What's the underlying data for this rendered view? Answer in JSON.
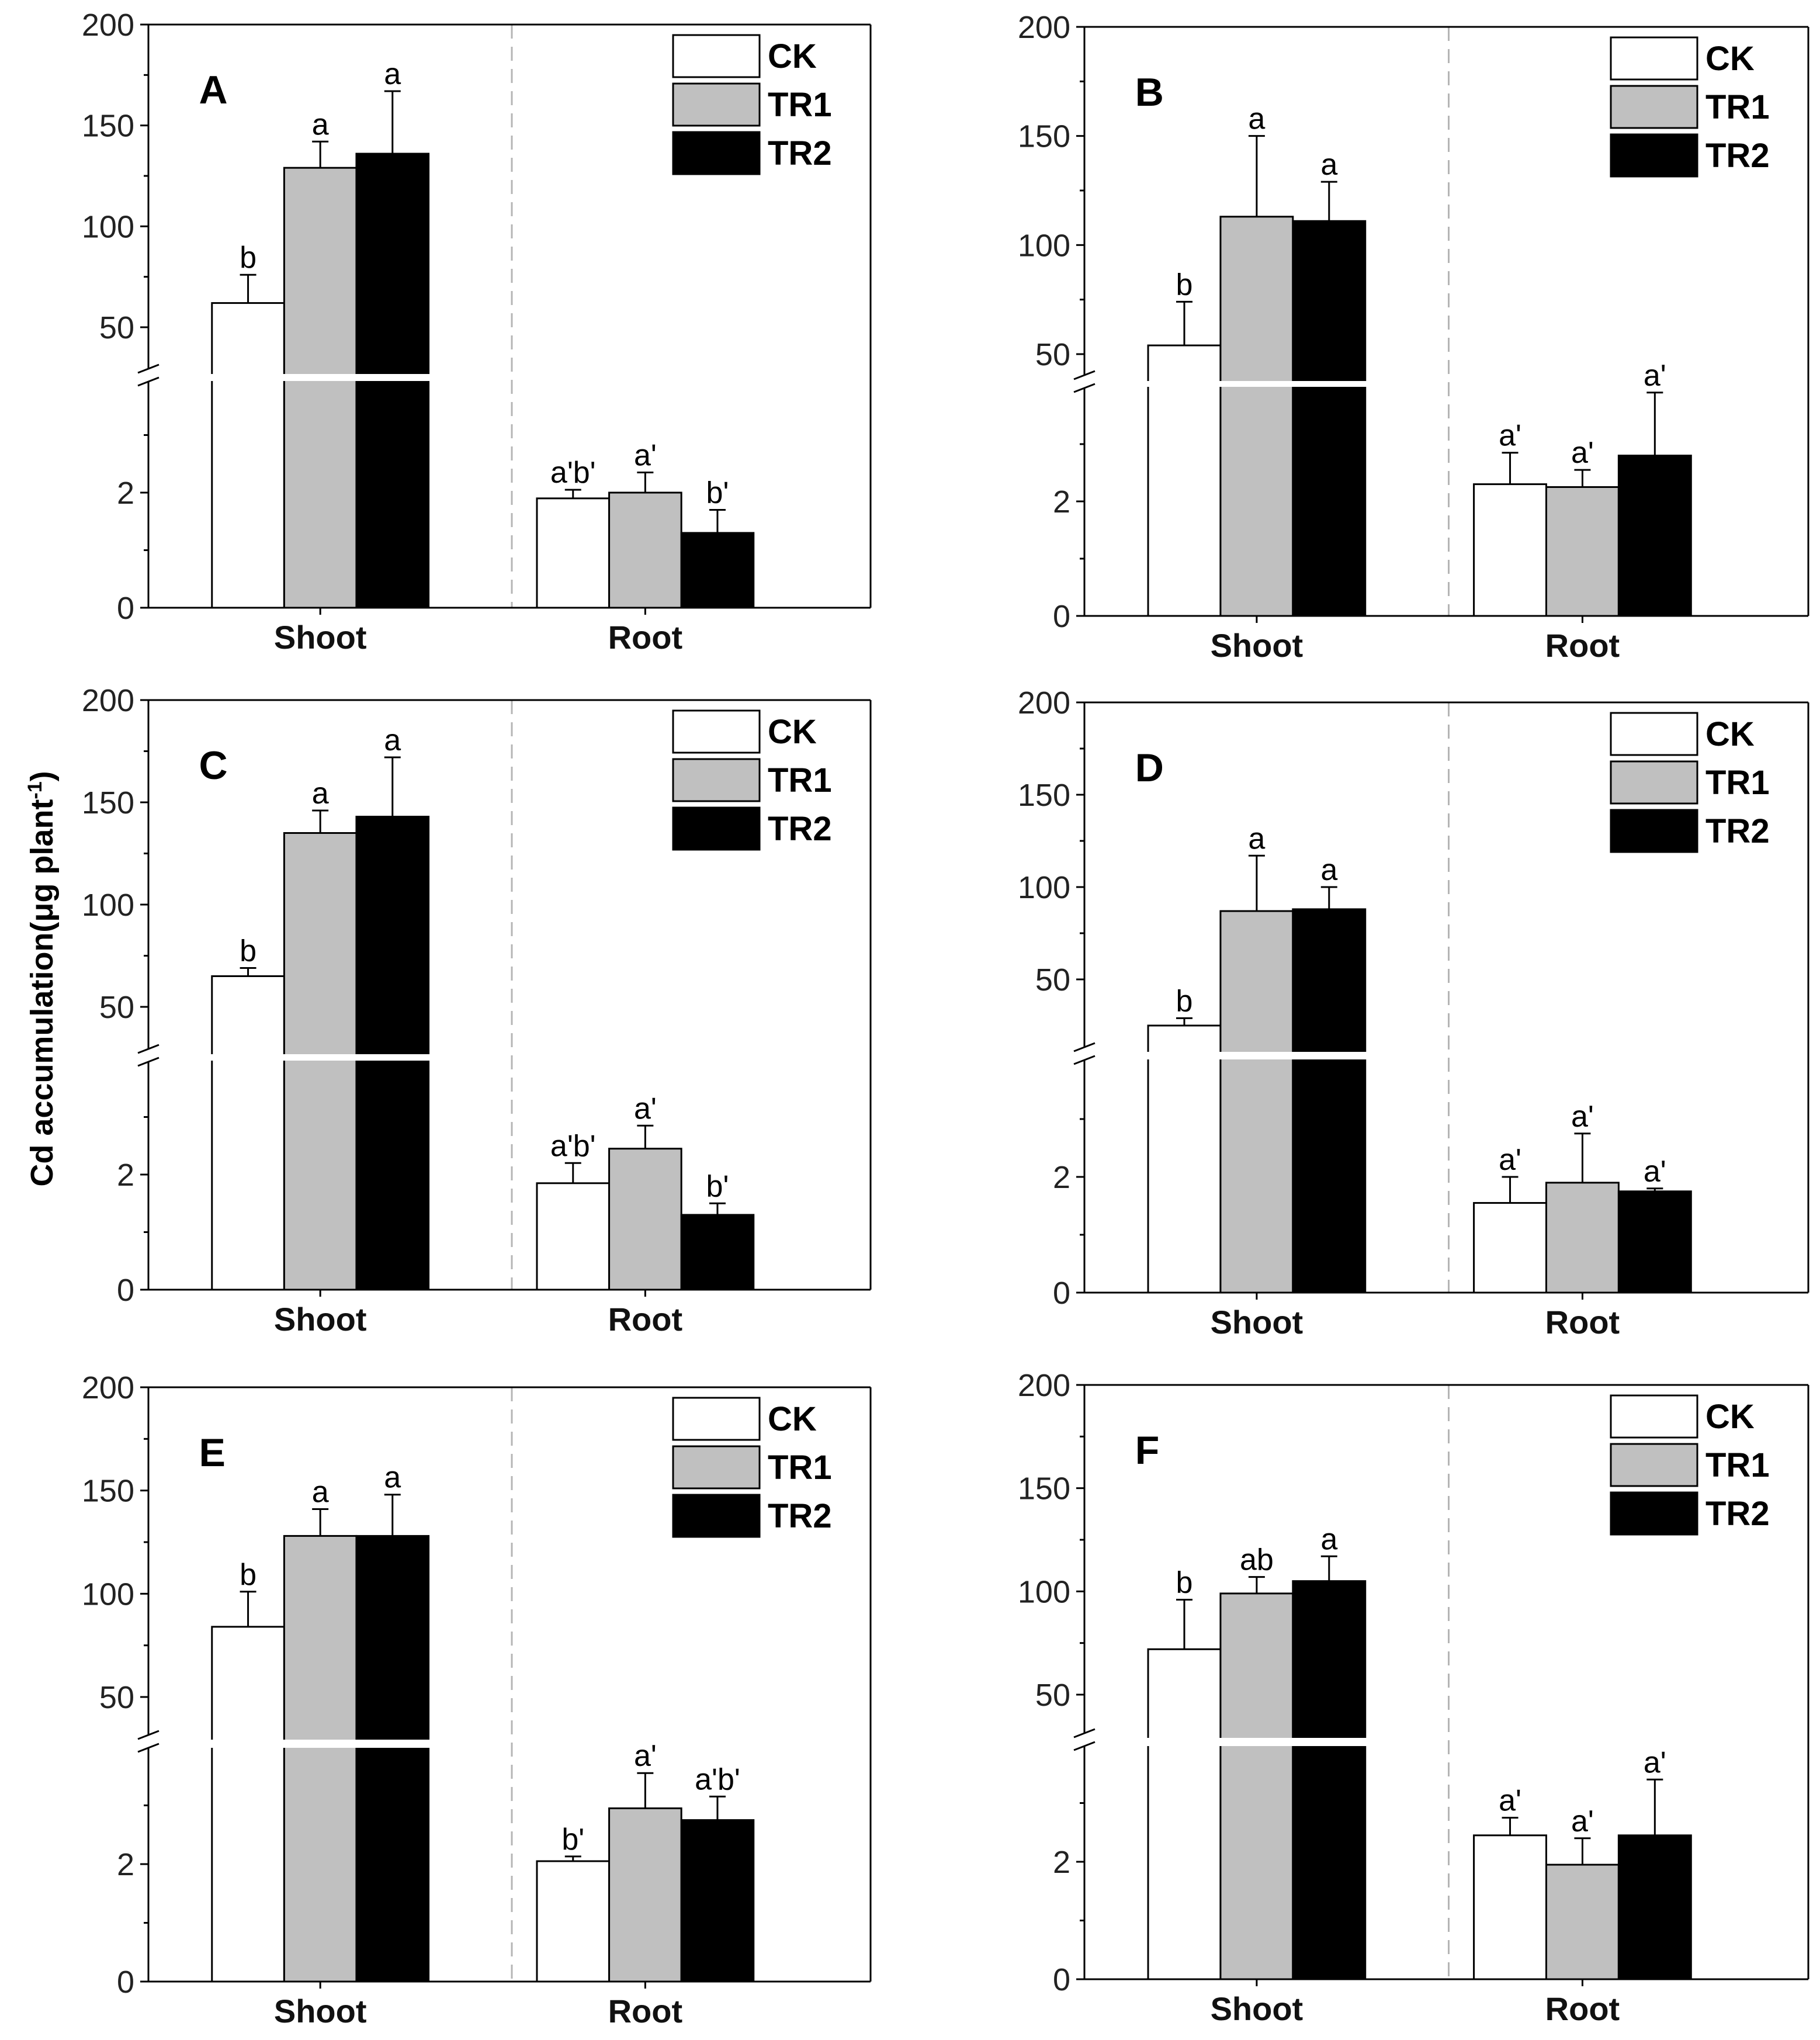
{
  "y_axis_label": "Cd accumulation(μg plant",
  "y_axis_label_sup": "-1",
  "chart_data": [
    {
      "type": "bar",
      "panel": "A",
      "categories": [
        "Shoot",
        "Root"
      ],
      "upper_ticks": [
        "200",
        "150",
        "100",
        "50"
      ],
      "lower_ticks": [
        "2",
        "0"
      ],
      "ylim_upper": [
        30,
        200
      ],
      "ylim_lower": [
        0,
        4.2
      ],
      "series": [
        {
          "name": "CK",
          "color": "#ffffff",
          "values": [
            62,
            1.9
          ],
          "errors": [
            14,
            0.15
          ],
          "labels": [
            "b",
            "a'b'"
          ]
        },
        {
          "name": "TR1",
          "color": "#c0c0c0",
          "values": [
            129,
            2.0
          ],
          "errors": [
            13,
            0.35
          ],
          "labels": [
            "a",
            "a'"
          ]
        },
        {
          "name": "TR2",
          "color": "#000000",
          "values": [
            136,
            1.3
          ],
          "errors": [
            31,
            0.4
          ],
          "labels": [
            "a",
            "b'"
          ]
        }
      ]
    },
    {
      "type": "bar",
      "panel": "B",
      "categories": [
        "Shoot",
        "Root"
      ],
      "upper_ticks": [
        "200",
        "150",
        "100",
        "50"
      ],
      "lower_ticks": [
        "2",
        "0"
      ],
      "ylim_upper": [
        40,
        200
      ],
      "ylim_lower": [
        0,
        4.2
      ],
      "series": [
        {
          "name": "CK",
          "color": "#ffffff",
          "values": [
            54,
            2.3
          ],
          "errors": [
            20,
            0.55
          ],
          "labels": [
            "b",
            "a'"
          ]
        },
        {
          "name": "TR1",
          "color": "#c0c0c0",
          "values": [
            113,
            2.25
          ],
          "errors": [
            37,
            0.3
          ],
          "labels": [
            "a",
            "a'"
          ]
        },
        {
          "name": "TR2",
          "color": "#000000",
          "values": [
            111,
            2.8
          ],
          "errors": [
            18,
            1.1
          ],
          "labels": [
            "a",
            "a'"
          ]
        }
      ]
    },
    {
      "type": "bar",
      "panel": "C",
      "categories": [
        "Shoot",
        "Root"
      ],
      "upper_ticks": [
        "200",
        "150",
        "100",
        "50"
      ],
      "lower_ticks": [
        "2",
        "0"
      ],
      "ylim_upper": [
        30,
        200
      ],
      "ylim_lower": [
        0,
        4.2
      ],
      "series": [
        {
          "name": "CK",
          "color": "#ffffff",
          "values": [
            65,
            1.85
          ],
          "errors": [
            4,
            0.35
          ],
          "labels": [
            "b",
            "a'b'"
          ]
        },
        {
          "name": "TR1",
          "color": "#c0c0c0",
          "values": [
            135,
            2.45
          ],
          "errors": [
            11,
            0.4
          ],
          "labels": [
            "a",
            "a'"
          ]
        },
        {
          "name": "TR2",
          "color": "#000000",
          "values": [
            143,
            1.3
          ],
          "errors": [
            29,
            0.2
          ],
          "labels": [
            "a",
            "b'"
          ]
        }
      ]
    },
    {
      "type": "bar",
      "panel": "D",
      "categories": [
        "Shoot",
        "Root"
      ],
      "upper_ticks": [
        "200",
        "150",
        "100",
        "50"
      ],
      "lower_ticks": [
        "2",
        "0"
      ],
      "ylim_upper": [
        10,
        200
      ],
      "ylim_lower": [
        0,
        4.2
      ],
      "series": [
        {
          "name": "CK",
          "color": "#ffffff",
          "values": [
            25,
            1.55
          ],
          "errors": [
            4,
            0.45
          ],
          "labels": [
            "b",
            "a'"
          ]
        },
        {
          "name": "TR1",
          "color": "#c0c0c0",
          "values": [
            87,
            1.9
          ],
          "errors": [
            30,
            0.85
          ],
          "labels": [
            "a",
            "a'"
          ]
        },
        {
          "name": "TR2",
          "color": "#000000",
          "values": [
            88,
            1.75
          ],
          "errors": [
            12,
            0.05
          ],
          "labels": [
            "a",
            "a'"
          ]
        }
      ]
    },
    {
      "type": "bar",
      "panel": "E",
      "categories": [
        "Shoot",
        "Root"
      ],
      "upper_ticks": [
        "200",
        "150",
        "100",
        "50"
      ],
      "lower_ticks": [
        "2",
        "0"
      ],
      "ylim_upper": [
        30,
        200
      ],
      "ylim_lower": [
        0,
        4.2
      ],
      "series": [
        {
          "name": "CK",
          "color": "#ffffff",
          "values": [
            84,
            2.05
          ],
          "errors": [
            17,
            0.08
          ],
          "labels": [
            "b",
            "b'"
          ]
        },
        {
          "name": "TR1",
          "color": "#c0c0c0",
          "values": [
            128,
            2.95
          ],
          "errors": [
            13,
            0.6
          ],
          "labels": [
            "a",
            "a'"
          ]
        },
        {
          "name": "TR2",
          "color": "#000000",
          "values": [
            128,
            2.75
          ],
          "errors": [
            20,
            0.4
          ],
          "labels": [
            "a",
            "a'b'"
          ]
        }
      ]
    },
    {
      "type": "bar",
      "panel": "F",
      "categories": [
        "Shoot",
        "Root"
      ],
      "upper_ticks": [
        "200",
        "150",
        "100",
        "50"
      ],
      "lower_ticks": [
        "2",
        "0"
      ],
      "ylim_upper": [
        30,
        200
      ],
      "ylim_lower": [
        0,
        4.2
      ],
      "series": [
        {
          "name": "CK",
          "color": "#ffffff",
          "values": [
            72,
            2.45
          ],
          "errors": [
            24,
            0.3
          ],
          "labels": [
            "b",
            "a'"
          ]
        },
        {
          "name": "TR1",
          "color": "#c0c0c0",
          "values": [
            99,
            1.95
          ],
          "errors": [
            8,
            0.45
          ],
          "labels": [
            "ab",
            "a'"
          ]
        },
        {
          "name": "TR2",
          "color": "#000000",
          "values": [
            105,
            2.45
          ],
          "errors": [
            12,
            0.95
          ],
          "labels": [
            "a",
            "a'"
          ]
        }
      ]
    }
  ]
}
